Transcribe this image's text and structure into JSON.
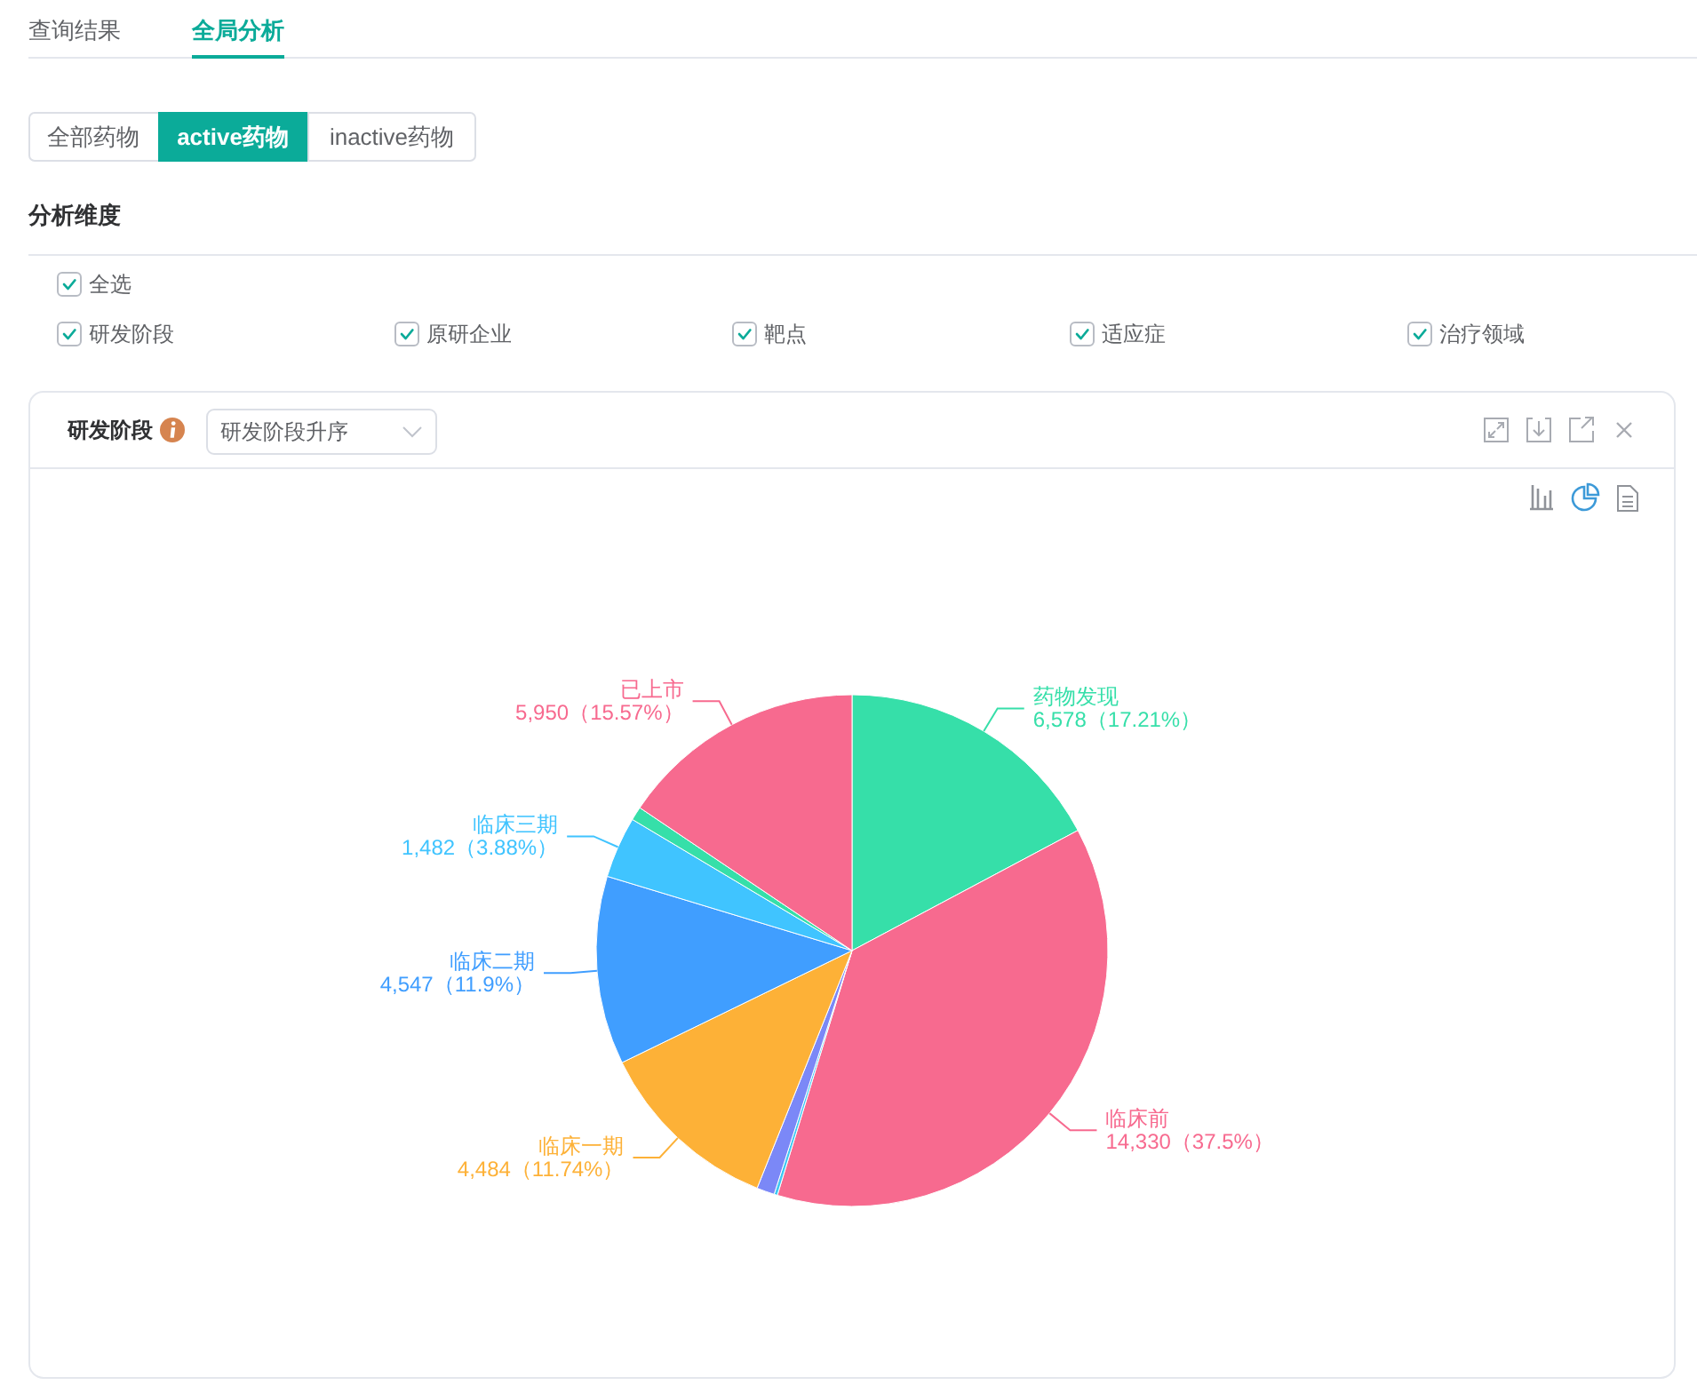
{
  "chart_data": {
    "type": "pie",
    "title": "研发阶段",
    "categories": [
      "药物发现",
      "临床前",
      null,
      null,
      "临床一期",
      "临床二期",
      "临床三期",
      null,
      "已上市"
    ],
    "values": [
      6578,
      14330,
      80,
      430,
      4484,
      4547,
      1482,
      330,
      5950
    ],
    "colors": [
      "#36dfa9",
      "#f76a8f",
      "#3ec8f2",
      "#7b88f7",
      "#fdb137",
      "#409eff",
      "#40c4ff",
      "#36dfa9",
      "#f76a8f"
    ],
    "value_labels": [
      "6,578（17.21%）",
      "14,330（37.5%）",
      null,
      null,
      "4,484（11.74%）",
      "4,547（11.9%）",
      "1,482（3.88%）",
      null,
      "5,950（15.57%）"
    ],
    "annotations": [
      "查询结果",
      "全局分析",
      "全部药物",
      "active药物",
      "inactive药物",
      "分析维度",
      "全选",
      "研发阶段",
      "原研企业",
      "靶点",
      "适应症",
      "治疗领域",
      "研发阶段升序"
    ]
  }
}
